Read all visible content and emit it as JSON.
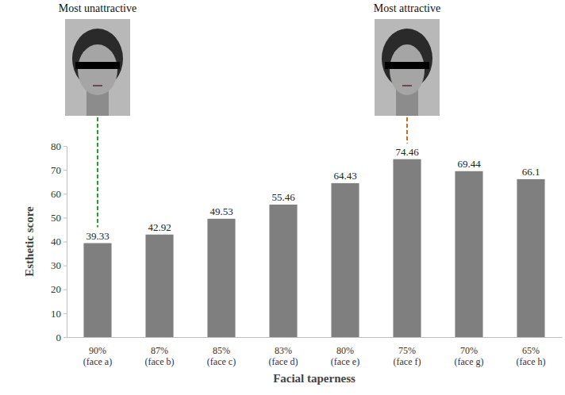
{
  "chart_data": {
    "type": "bar",
    "x_label": "Facial taperness",
    "y_label": "Esthetic score",
    "categories": [
      "90%\n(face a)",
      "87%\n(face b)",
      "85%\n(face c)",
      "83%\n(face d)",
      "80%\n(face e)",
      "75%\n(face f)",
      "70%\n(face g)",
      "65%\n(face h)"
    ],
    "values": [
      39.33,
      42.92,
      49.53,
      55.46,
      64.43,
      74.46,
      69.44,
      66.1
    ],
    "color": "#7f7f7f",
    "ylim": [
      0,
      80
    ],
    "yticks": [
      0,
      10,
      20,
      30,
      40,
      50,
      60,
      70,
      80
    ],
    "grid": false,
    "data_labels": true,
    "annotations": [
      {
        "text": "Most unattractive",
        "color": "#2e9e2e"
      },
      {
        "text": "Most attractive",
        "color": "#d2691e"
      }
    ]
  }
}
